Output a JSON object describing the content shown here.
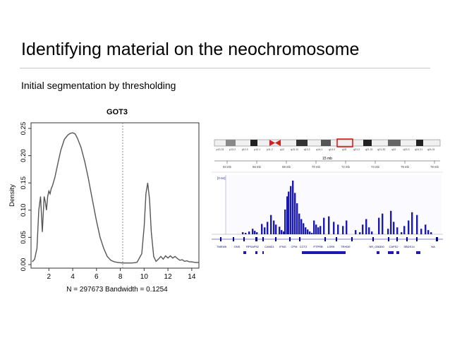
{
  "slide": {
    "title": "Identifying material on the neochromosome",
    "subtitle": "Initial segmentation by thresholding"
  },
  "chart_data": [
    {
      "type": "line",
      "title": "GOT3",
      "xlabel": "N = 297673   Bandwidth = 0.1254",
      "ylabel": "Density",
      "xlim": [
        0.5,
        14.6
      ],
      "ylim": [
        0,
        0.25
      ],
      "xticks": [
        2,
        4,
        6,
        8,
        10,
        12,
        14
      ],
      "yticks": [
        "0.00",
        "0.05",
        "0.10",
        "0.15",
        "0.20",
        "0.25"
      ],
      "threshold_x": 8.2,
      "grid": false,
      "legend": "none",
      "line_color": "#555555",
      "x": [
        0.6,
        0.8,
        1.0,
        1.15,
        1.3,
        1.45,
        1.6,
        1.7,
        1.8,
        1.9,
        2.0,
        2.1,
        2.2,
        2.3,
        2.5,
        2.7,
        3.0,
        3.3,
        3.6,
        3.8,
        4.0,
        4.2,
        4.4,
        4.7,
        5.0,
        5.3,
        5.6,
        6.0,
        6.3,
        6.6,
        6.9,
        7.2,
        7.5,
        7.8,
        8.2,
        8.6,
        9.0,
        9.4,
        9.8,
        10.0,
        10.15,
        10.3,
        10.45,
        10.6,
        10.8,
        11.0,
        11.2,
        11.4,
        11.6,
        11.8,
        12.0,
        12.2,
        12.4,
        12.6,
        12.8,
        13.0,
        13.2,
        13.4,
        13.6,
        13.8,
        14.0,
        14.3,
        14.6
      ],
      "y": [
        0.005,
        0.01,
        0.03,
        0.1,
        0.125,
        0.06,
        0.125,
        0.115,
        0.1,
        0.125,
        0.135,
        0.13,
        0.14,
        0.145,
        0.16,
        0.18,
        0.21,
        0.23,
        0.238,
        0.241,
        0.242,
        0.24,
        0.232,
        0.215,
        0.19,
        0.16,
        0.125,
        0.08,
        0.05,
        0.03,
        0.015,
        0.008,
        0.005,
        0.004,
        0.003,
        0.003,
        0.003,
        0.004,
        0.02,
        0.07,
        0.13,
        0.15,
        0.12,
        0.06,
        0.015,
        0.006,
        0.01,
        0.015,
        0.01,
        0.016,
        0.012,
        0.016,
        0.012,
        0.015,
        0.011,
        0.008,
        0.009,
        0.006,
        0.007,
        0.005,
        0.005,
        0.004,
        0.004
      ]
    },
    {
      "type": "bar",
      "title": "",
      "scale_label": "15 mb",
      "track_max_label": "[0-84]",
      "bands": [
        "p13.31",
        "p13.2",
        "p12.3",
        "p12.1",
        "p11.2",
        "q12",
        "q13.11",
        "q13.2",
        "q14.1",
        "q14.3",
        "q15",
        "q21.2",
        "q21.31",
        "q21.33",
        "q22",
        "q23.3",
        "q24.21",
        "q24.31"
      ],
      "positions": [
        "64 mb",
        "66 mb",
        "68 mb",
        "70 mb",
        "72 mb",
        "74 mb",
        "76 mb",
        "78 mb"
      ],
      "genes": [
        "TMEM5",
        "GNS",
        "RPSAP52",
        "CAND1",
        "IFNG",
        "CPM",
        "CCT2",
        "PTPRB",
        "LGR5",
        "TRHDE",
        "NR_036300",
        "CAPS2",
        "SBDS14",
        "NA"
      ],
      "x": [
        1,
        3,
        5,
        7,
        9,
        11,
        13,
        15,
        17,
        19,
        21,
        23,
        25,
        27,
        29,
        31,
        33,
        35,
        37,
        39,
        41,
        43,
        45,
        47,
        49,
        51,
        53,
        55,
        57,
        59,
        61,
        63,
        65,
        67,
        69,
        71,
        73,
        75,
        77,
        79,
        81,
        83,
        85,
        87,
        89,
        91,
        93,
        95,
        97,
        99,
        101,
        103,
        105,
        107,
        109,
        111,
        113,
        115,
        117,
        119,
        121,
        123,
        125,
        127,
        129,
        131,
        133,
        135,
        137,
        139,
        141,
        143,
        145,
        147,
        149,
        151,
        153,
        155,
        157,
        159
      ],
      "values": [
        0,
        0,
        0,
        0,
        0,
        0,
        0,
        0,
        0,
        0,
        0,
        0,
        0,
        0,
        0,
        0,
        0,
        0,
        0,
        0,
        0,
        3,
        2,
        0,
        0,
        0,
        0,
        0,
        0,
        0,
        0,
        0,
        18,
        24,
        28,
        22,
        16,
        12,
        8,
        5,
        3,
        2,
        0,
        0,
        0,
        0,
        0,
        0,
        0,
        0,
        0,
        0,
        0,
        0,
        0,
        0,
        0,
        0,
        0,
        0,
        0,
        0,
        0,
        0,
        0,
        0,
        0,
        0,
        0,
        0,
        0,
        0,
        0,
        0,
        0,
        0,
        0,
        0,
        0,
        0
      ],
      "series": [
        {
          "name": "",
          "x": [
            43,
            47,
            52,
            57,
            60,
            63,
            70,
            74,
            78,
            83,
            87,
            90,
            95,
            98,
            101,
            103,
            106,
            108,
            111,
            114,
            117,
            120,
            123,
            126,
            129,
            132,
            135,
            138,
            141,
            144,
            147,
            150,
            153,
            158,
            165,
            172,
            178,
            185,
            190,
            203,
            209,
            213,
            218,
            222,
            226,
            236,
            241,
            249,
            253,
            257,
            262,
            268,
            272,
            278,
            283,
            290,
            296,
            302,
            306,
            310
          ],
          "values": [
            3,
            2,
            4,
            8,
            5,
            3,
            15,
            10,
            18,
            28,
            20,
            14,
            11,
            6,
            4,
            36,
            55,
            62,
            70,
            78,
            60,
            45,
            30,
            22,
            16,
            10,
            7,
            4,
            2,
            20,
            14,
            10,
            12,
            24,
            26,
            18,
            14,
            12,
            20,
            6,
            3,
            14,
            22,
            10,
            4,
            24,
            30,
            8,
            34,
            18,
            10,
            3,
            12,
            20,
            32,
            28,
            8,
            14,
            6,
            3
          ]
        }
      ]
    }
  ]
}
